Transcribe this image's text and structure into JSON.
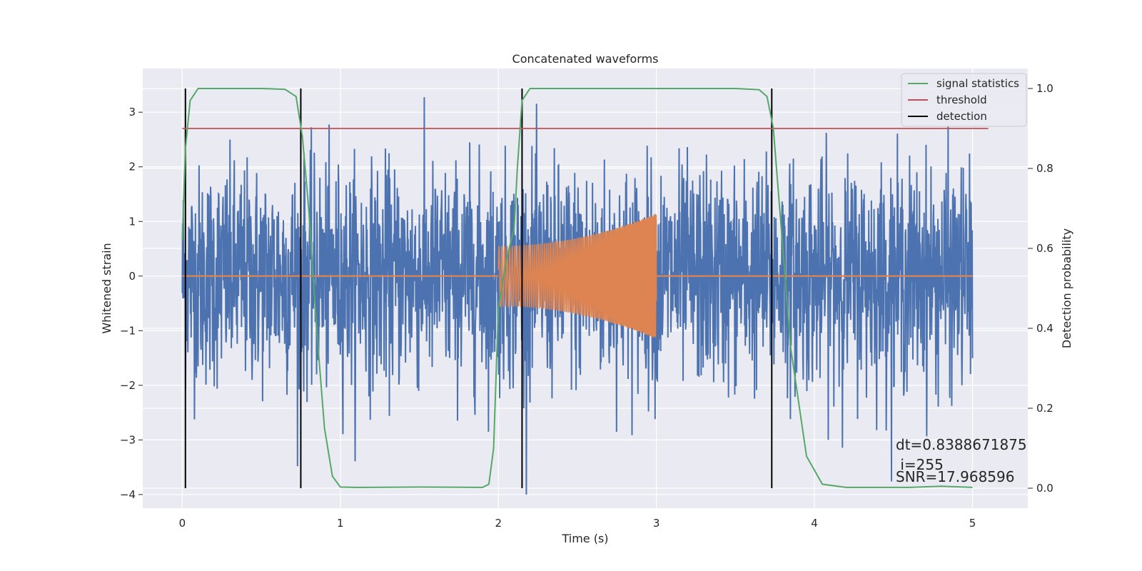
{
  "chart_data": {
    "type": "line",
    "title": "Concatenated waveforms",
    "xlabel": "Time (s)",
    "ylabel": "Whitened strain",
    "y2label": "Detection probability",
    "xlim": [
      -0.25,
      5.35
    ],
    "ylim": [
      -4.25,
      3.8
    ],
    "y2lim": [
      -0.05,
      1.05
    ],
    "x_ticks": [
      0,
      1,
      2,
      3,
      4,
      5
    ],
    "y_ticks": [
      -4,
      -3,
      -2,
      -1,
      0,
      1,
      2,
      3
    ],
    "y2_ticks": [
      0.0,
      0.2,
      0.4,
      0.6,
      0.8,
      1.0
    ],
    "x_tick_labels": [
      "0",
      "1",
      "2",
      "3",
      "4",
      "5"
    ],
    "y_tick_labels": [
      "−4",
      "−3",
      "−2",
      "−1",
      "0",
      "1",
      "2",
      "3"
    ],
    "y2_tick_labels": [
      "0.0",
      "0.2",
      "0.4",
      "0.6",
      "0.8",
      "1.0"
    ],
    "grid": true,
    "legend_position": "top-right",
    "colors": {
      "background": "#eaeaf2",
      "grid": "#ffffff",
      "noise": "#4c72b0",
      "injection": "#dd8452",
      "statistic": "#55a868",
      "threshold": "#c44e52",
      "detection": "#000000"
    },
    "series": [
      {
        "name": "",
        "description_key": "whitened-noise",
        "x_range": [
          0,
          5
        ],
        "approx_std": 1.0,
        "approx_extremes": [
          -4.0,
          3.4
        ]
      },
      {
        "name": "",
        "description_key": "injected-chirp",
        "x_range": [
          2.0,
          3.0
        ],
        "amplitude_start": 0.55,
        "amplitude_end": 1.15
      },
      {
        "name": "signal statistics",
        "axis": "right",
        "x": [
          0,
          0.02,
          0.05,
          0.1,
          0.2,
          0.5,
          0.65,
          0.72,
          0.76,
          0.8,
          0.85,
          0.9,
          0.95,
          1.0,
          1.1,
          1.5,
          1.9,
          1.94,
          1.97,
          2.0,
          2.05,
          2.1,
          2.12,
          2.15,
          2.2,
          3.5,
          3.65,
          3.7,
          3.74,
          3.78,
          3.85,
          3.95,
          4.05,
          4.2,
          4.6,
          4.8,
          5.0
        ],
        "y": [
          0.62,
          0.85,
          0.97,
          1.0,
          1.0,
          1.0,
          0.998,
          0.98,
          0.88,
          0.7,
          0.4,
          0.15,
          0.03,
          0.003,
          0.002,
          0.003,
          0.002,
          0.01,
          0.1,
          0.45,
          0.57,
          0.65,
          0.8,
          0.97,
          1.0,
          1.0,
          0.997,
          0.98,
          0.9,
          0.7,
          0.35,
          0.08,
          0.01,
          0.002,
          0.002,
          0.005,
          0.002
        ]
      },
      {
        "name": "threshold",
        "axis": "right",
        "x": [
          0,
          5.1
        ],
        "y": [
          0.9,
          0.9
        ]
      },
      {
        "name": "detection",
        "axis": "right",
        "x": [
          0.02,
          0.75,
          2.15,
          3.73
        ],
        "y_range": [
          0.0,
          1.0
        ]
      }
    ],
    "annotations": [
      {
        "text": "dt=0.8388671875",
        "x": 4.5,
        "y": 0.1
      },
      {
        "text": " i=255",
        "x": 4.5,
        "y": 0.05
      },
      {
        "text": "SNR=17.968596",
        "x": 4.5,
        "y": 0.02
      }
    ]
  }
}
